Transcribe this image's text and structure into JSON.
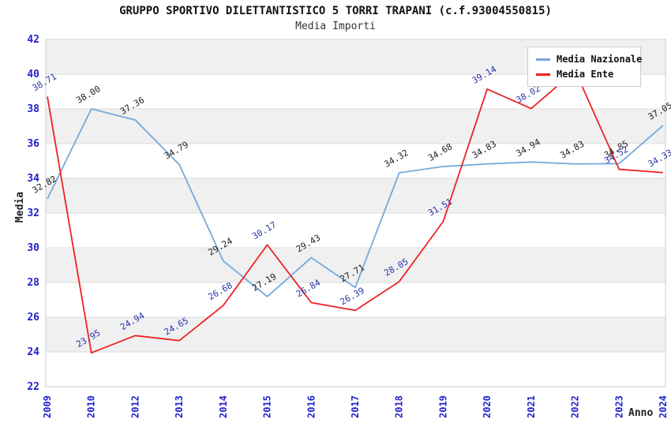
{
  "chart_data": {
    "type": "line",
    "title": "GRUPPO SPORTIVO DILETTANTISTICO 5 TORRI TRAPANI (c.f.93004550815)",
    "subtitle": "Media Importi",
    "xlabel": "Anno",
    "ylabel": "Media",
    "ylim": [
      22,
      42
    ],
    "ytick_step": 2,
    "grid": true,
    "legend_position": "top-right",
    "band_color": "#f0f0f0",
    "gridline_color": "#dcdcdc",
    "plot_border_color": "#cccccc",
    "axis_tick_label_color": "#2222cc",
    "value_label_decimals": 2,
    "categories": [
      "2009",
      "2010",
      "2012",
      "2013",
      "2014",
      "2015",
      "2016",
      "2017",
      "2018",
      "2019",
      "2020",
      "2021",
      "2022",
      "2023",
      "2024"
    ],
    "series": [
      {
        "name": "Media Nazionale",
        "color": "#74a9dc",
        "label_color": "#222222",
        "values": [
          32.82,
          38.0,
          37.36,
          34.79,
          29.24,
          27.19,
          29.43,
          27.71,
          34.32,
          34.68,
          34.83,
          34.94,
          34.83,
          34.85,
          37.05
        ]
      },
      {
        "name": "Media Ente",
        "color": "#ee2222",
        "label_color": "#2a35a8",
        "values": [
          38.71,
          23.95,
          24.94,
          24.65,
          26.68,
          30.17,
          26.84,
          26.39,
          28.05,
          31.51,
          39.14,
          38.02,
          40.2,
          34.52,
          34.33
        ]
      }
    ]
  }
}
